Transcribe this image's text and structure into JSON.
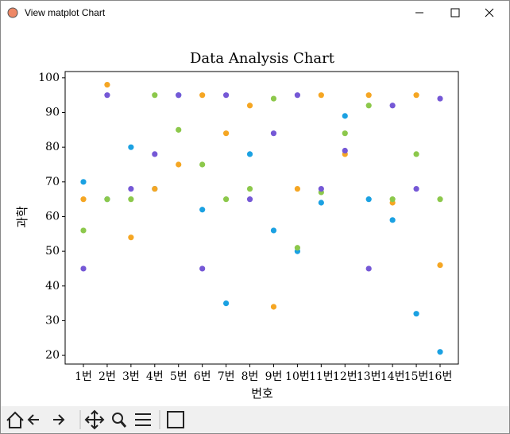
{
  "window": {
    "title": "View matplot Chart"
  },
  "chart_data": {
    "type": "scatter",
    "title": "Data Analysis Chart",
    "x_label": "번호",
    "y_label": "과학",
    "categories": [
      "1번",
      "2번",
      "3번",
      "4번",
      "5번",
      "6번",
      "7번",
      "8번",
      "9번",
      "10번",
      "11번",
      "12번",
      "13번",
      "14번",
      "15번",
      "16번"
    ],
    "series": [
      {
        "color": "#1ba1e2",
        "values": [
          70,
          65,
          80,
          68,
          95,
          62,
          35,
          78,
          56,
          50,
          64,
          89,
          65,
          59,
          32,
          21
        ]
      },
      {
        "color": "#f5a623",
        "values": [
          65,
          98,
          54,
          68,
          75,
          95,
          84,
          92,
          34,
          68,
          95,
          78,
          95,
          64,
          95,
          46
        ]
      },
      {
        "color": "#8cc84b",
        "values": [
          56,
          65,
          65,
          95,
          85,
          75,
          65,
          68,
          94,
          51,
          67,
          84,
          92,
          65,
          78,
          65
        ]
      },
      {
        "color": "#7558d6",
        "values": [
          45,
          95,
          68,
          78,
          95,
          45,
          95,
          65,
          84,
          95,
          68,
          79,
          45,
          92,
          68,
          94
        ]
      }
    ],
    "ylim": [
      17.5,
      101.8
    ],
    "yticks": [
      20,
      30,
      40,
      50,
      60,
      70,
      80,
      90,
      100
    ],
    "grid": false
  }
}
